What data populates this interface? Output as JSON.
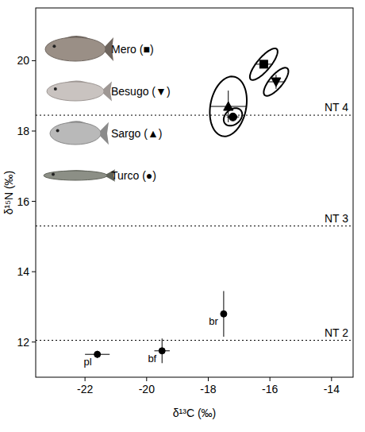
{
  "chart_data": {
    "type": "scatter",
    "x_label": "δ¹³C (‰)",
    "y_label": "δ¹⁵N (‰)",
    "xlim": [
      -23.6,
      -13.3
    ],
    "ylim": [
      11.0,
      21.5
    ],
    "xticks": [
      -22,
      -20,
      -18,
      -16,
      -14
    ],
    "yticks": [
      12,
      14,
      16,
      18,
      20
    ],
    "grid": false,
    "legend": "top-left",
    "reference_lines": [
      {
        "label": "NT 4",
        "value": 18.45
      },
      {
        "label": "NT 3",
        "value": 15.3
      },
      {
        "label": "NT 2",
        "value": 12.05
      }
    ],
    "series": [
      {
        "name": "Mero (■)",
        "marker": "square",
        "color": "#000000",
        "x": [
          -16.2
        ],
        "values": [
          19.9
        ],
        "x_error": [
          0.3
        ],
        "y_error": [
          0.1
        ],
        "ellipse": {
          "x_sd": 0.45,
          "y_sd": 0.45,
          "correlation": 0.8
        }
      },
      {
        "name": "Besugo (▼)",
        "marker": "triangle-down",
        "color": "#000000",
        "x": [
          -15.8
        ],
        "values": [
          19.4
        ],
        "x_error": [
          0.25
        ],
        "y_error": [
          0.2
        ],
        "ellipse": {
          "x_sd": 0.4,
          "y_sd": 0.4,
          "correlation": 0.75
        }
      },
      {
        "name": "Sargo (▲)",
        "marker": "triangle-up",
        "color": "#000000",
        "x": [
          -17.35
        ],
        "values": [
          18.7
        ],
        "x_error": [
          0.6
        ],
        "y_error": [
          0.45
        ],
        "ellipse": {
          "x_sd": 0.6,
          "y_sd": 0.85,
          "correlation": 0.2
        }
      },
      {
        "name": "Turco (●)",
        "marker": "circle",
        "color": "#000000",
        "x": [
          -17.2
        ],
        "values": [
          18.4
        ],
        "x_error": [
          0.2
        ],
        "y_error": [
          0.1
        ],
        "ellipse": {
          "x_sd": 0.3,
          "y_sd": 0.25,
          "correlation": 0.3
        }
      },
      {
        "marker": "circle",
        "color": "#000000",
        "labels": [
          "pl",
          "bf",
          "br"
        ],
        "x": [
          -21.6,
          -19.5,
          -17.5
        ],
        "values": [
          11.65,
          11.75,
          12.8
        ],
        "x_error": [
          0.4,
          0.25,
          0.05
        ],
        "y_error": [
          0.1,
          0.35,
          0.65
        ]
      }
    ]
  }
}
